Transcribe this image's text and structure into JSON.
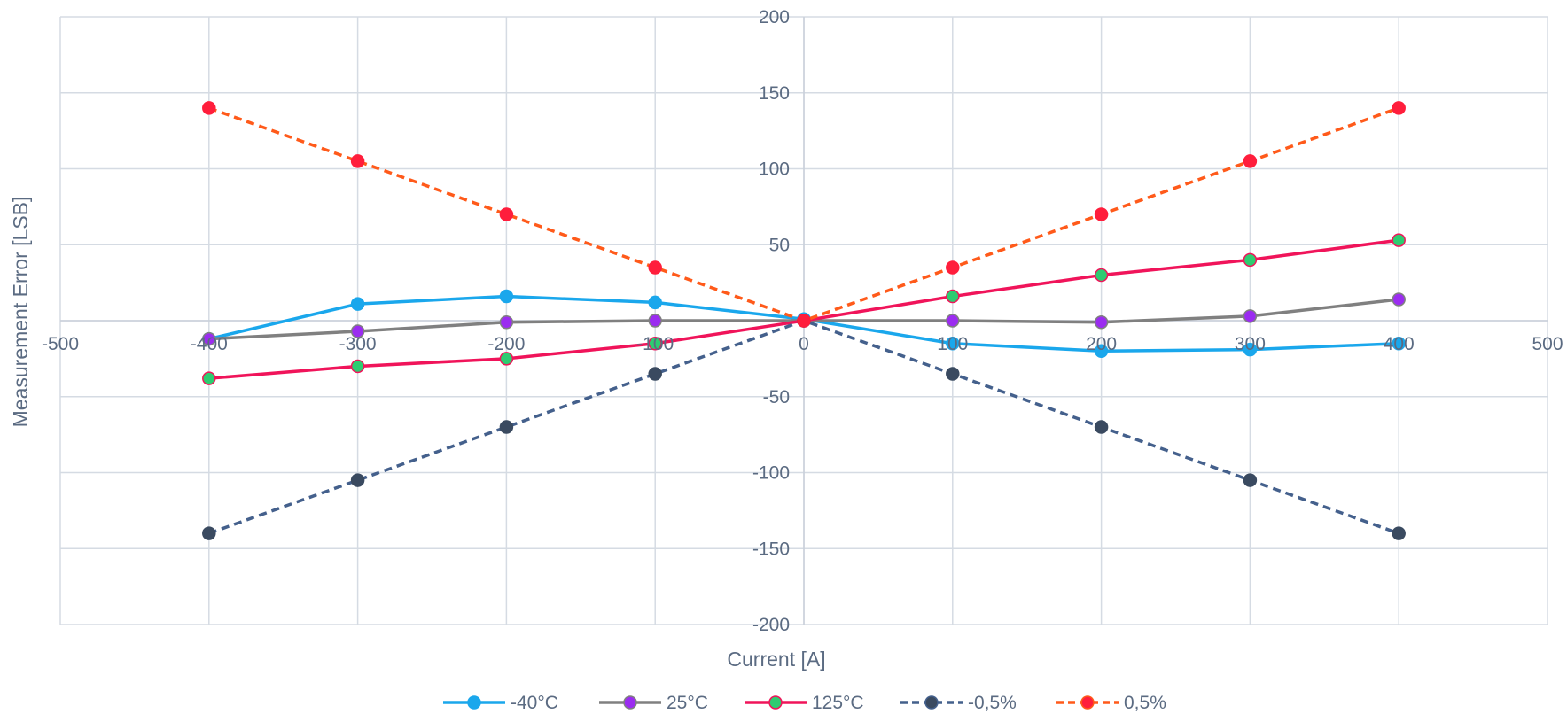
{
  "chart_data": {
    "type": "line",
    "title": "",
    "xlabel": "Current [A]",
    "ylabel": "Measurement Error [LSB]",
    "xlim": [
      -500,
      500
    ],
    "ylim": [
      -200,
      200
    ],
    "x_ticks": [
      -500,
      -400,
      -300,
      -200,
      -100,
      0,
      100,
      200,
      300,
      400,
      500
    ],
    "y_ticks": [
      -200,
      -150,
      -100,
      -50,
      0,
      50,
      100,
      150,
      200
    ],
    "x_tick_labels": [
      "-500",
      "-400",
      "-300",
      "-200",
      "-100",
      "0",
      "100",
      "200",
      "300",
      "400",
      "500"
    ],
    "y_tick_labels": [
      "-200",
      "-150",
      "-100",
      "-50",
      "",
      "50",
      "100",
      "150",
      "200"
    ],
    "grid": true,
    "legend_position": "bottom",
    "x": [
      -400,
      -300,
      -200,
      -100,
      0,
      100,
      200,
      300,
      400
    ],
    "series": [
      {
        "name": "-40°C",
        "color": "#1aa7ec",
        "marker_color": "#1aa7ec",
        "dashed": false,
        "values": [
          -12,
          11,
          16,
          12,
          1,
          -15,
          -20,
          -19,
          -15
        ]
      },
      {
        "name": "25°C",
        "color": "#808080",
        "marker_color": "#9b2cf0",
        "dashed": false,
        "values": [
          -12,
          -7,
          -1,
          0,
          0,
          0,
          -1,
          3,
          14
        ]
      },
      {
        "name": "125°C",
        "color": "#f0145a",
        "marker_color": "#2ecc71",
        "dashed": false,
        "values": [
          -38,
          -30,
          -25,
          -15,
          0,
          16,
          30,
          40,
          53
        ]
      },
      {
        "name": "-0,5%",
        "color": "#44608c",
        "marker_color": "#3a4a60",
        "dashed": true,
        "values": [
          -140,
          -105,
          -70,
          -35,
          0,
          -35,
          -70,
          -105,
          -140
        ]
      },
      {
        "name": "0,5%",
        "color": "#ff5a1a",
        "marker_color": "#ff1e3c",
        "dashed": true,
        "values": [
          140,
          105,
          70,
          35,
          0,
          35,
          70,
          105,
          140
        ]
      }
    ]
  }
}
